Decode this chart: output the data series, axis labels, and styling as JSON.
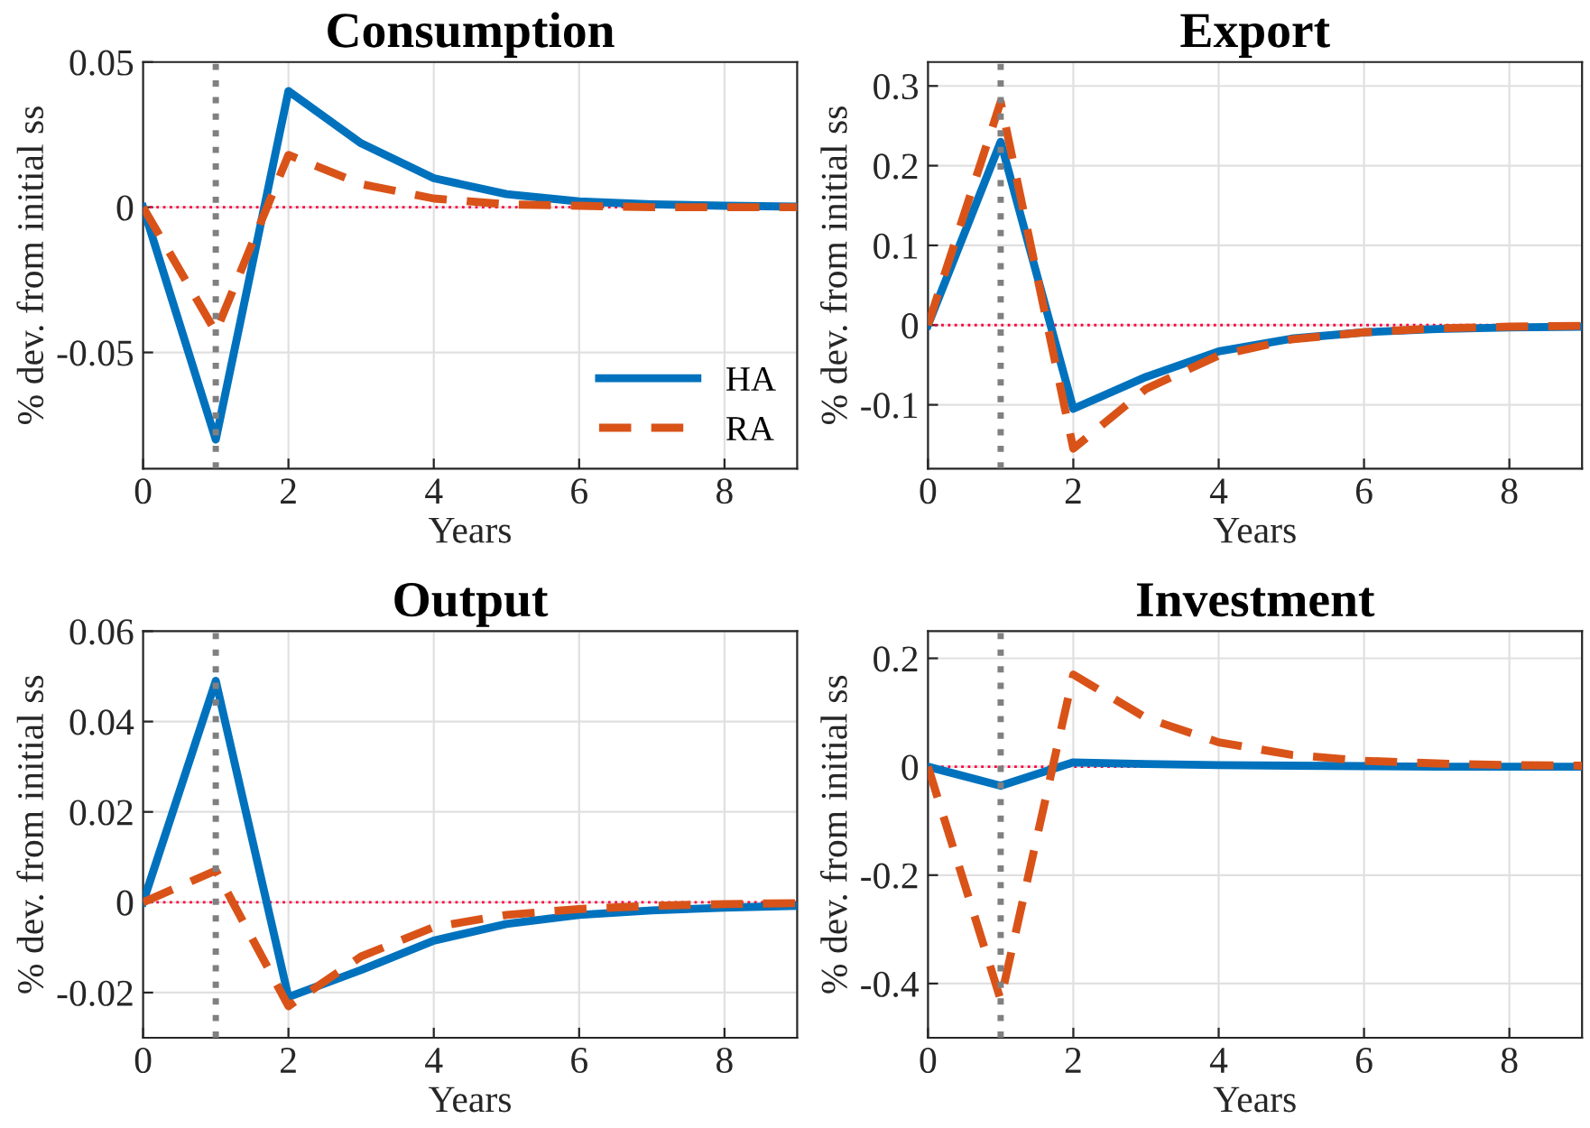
{
  "chart_data": [
    {
      "type": "line",
      "title": "Consumption",
      "xlabel": "Years",
      "ylabel": "% dev. from initial ss",
      "x": [
        0,
        1,
        2,
        3,
        4,
        5,
        6,
        7,
        8,
        9
      ],
      "xlim": [
        0,
        9
      ],
      "xticks": [
        0,
        2,
        4,
        6,
        8
      ],
      "ylim": [
        -0.09,
        0.05
      ],
      "yticks": [
        -0.05,
        0,
        0.05
      ],
      "grid": true,
      "legend": "bottom right",
      "series": [
        {
          "name": "HA",
          "color": "#0072bd",
          "line_style": "solid",
          "values": [
            0,
            -0.08,
            0.04,
            0.022,
            0.01,
            0.0045,
            0.002,
            0.001,
            0.0005,
            0.0002
          ]
        },
        {
          "name": "RA",
          "color": "#d95319",
          "line_style": "dashed",
          "values": [
            0,
            -0.043,
            0.018,
            0.008,
            0.003,
            0.001,
            0.0005,
            0,
            0,
            0
          ]
        }
      ],
      "ref_lines": [
        {
          "axis": "x",
          "value": 1,
          "color": "#808080",
          "line_style": "dotted"
        },
        {
          "axis": "y",
          "value": 0,
          "color": "#ff0040",
          "line_style": "dotted"
        }
      ]
    },
    {
      "type": "line",
      "title": "Export",
      "xlabel": "Years",
      "ylabel": "% dev. from initial ss",
      "x": [
        0,
        1,
        2,
        3,
        4,
        5,
        6,
        7,
        8,
        9
      ],
      "xlim": [
        0,
        9
      ],
      "xticks": [
        0,
        2,
        4,
        6,
        8
      ],
      "ylim": [
        -0.18,
        0.33
      ],
      "yticks": [
        -0.1,
        0,
        0.1,
        0.2,
        0.3
      ],
      "grid": true,
      "series": [
        {
          "color": "#0072bd",
          "line_style": "solid",
          "values": [
            0,
            0.23,
            -0.105,
            -0.065,
            -0.033,
            -0.017,
            -0.009,
            -0.005,
            -0.003,
            -0.002
          ]
        },
        {
          "color": "#d95319",
          "line_style": "dashed",
          "values": [
            0,
            0.28,
            -0.155,
            -0.08,
            -0.038,
            -0.018,
            -0.009,
            -0.004,
            -0.002,
            -0.001
          ]
        }
      ],
      "ref_lines": [
        {
          "axis": "x",
          "value": 1,
          "color": "#808080",
          "line_style": "dotted"
        },
        {
          "axis": "y",
          "value": 0,
          "color": "#ff0040",
          "line_style": "dotted"
        }
      ]
    },
    {
      "type": "line",
      "title": "Output",
      "xlabel": "Years",
      "ylabel": "% dev. from initial ss",
      "x": [
        0,
        1,
        2,
        3,
        4,
        5,
        6,
        7,
        8,
        9
      ],
      "xlim": [
        0,
        9
      ],
      "xticks": [
        0,
        2,
        4,
        6,
        8
      ],
      "ylim": [
        -0.03,
        0.06
      ],
      "yticks": [
        -0.02,
        0,
        0.02,
        0.04,
        0.06
      ],
      "grid": true,
      "series": [
        {
          "color": "#0072bd",
          "line_style": "solid",
          "values": [
            0,
            0.049,
            -0.021,
            -0.015,
            -0.0085,
            -0.0048,
            -0.0028,
            -0.0018,
            -0.0012,
            -0.0008
          ]
        },
        {
          "color": "#d95319",
          "line_style": "dashed",
          "values": [
            0,
            0.007,
            -0.023,
            -0.012,
            -0.0055,
            -0.0028,
            -0.0015,
            -0.0008,
            -0.0004,
            -0.0002
          ]
        }
      ],
      "ref_lines": [
        {
          "axis": "x",
          "value": 1,
          "color": "#808080",
          "line_style": "dotted"
        },
        {
          "axis": "y",
          "value": 0,
          "color": "#ff0040",
          "line_style": "dotted"
        }
      ]
    },
    {
      "type": "line",
      "title": "Investment",
      "xlabel": "Years",
      "ylabel": "% dev. from initial ss",
      "x": [
        0,
        1,
        2,
        3,
        4,
        5,
        6,
        7,
        8,
        9
      ],
      "xlim": [
        0,
        9
      ],
      "xticks": [
        0,
        2,
        4,
        6,
        8
      ],
      "ylim": [
        -0.5,
        0.25
      ],
      "yticks": [
        -0.4,
        -0.2,
        0,
        0.2
      ],
      "grid": true,
      "series": [
        {
          "color": "#0072bd",
          "line_style": "solid",
          "values": [
            0,
            -0.035,
            0.008,
            0.005,
            0.003,
            0.002,
            0.001,
            0,
            0,
            0
          ]
        },
        {
          "color": "#d95319",
          "line_style": "dashed",
          "values": [
            0,
            -0.43,
            0.17,
            0.09,
            0.045,
            0.022,
            0.011,
            0.006,
            0.003,
            0.002
          ]
        }
      ],
      "ref_lines": [
        {
          "axis": "x",
          "value": 1,
          "color": "#808080",
          "line_style": "dotted"
        },
        {
          "axis": "y",
          "value": 0,
          "color": "#ff0040",
          "line_style": "dotted"
        }
      ]
    }
  ]
}
